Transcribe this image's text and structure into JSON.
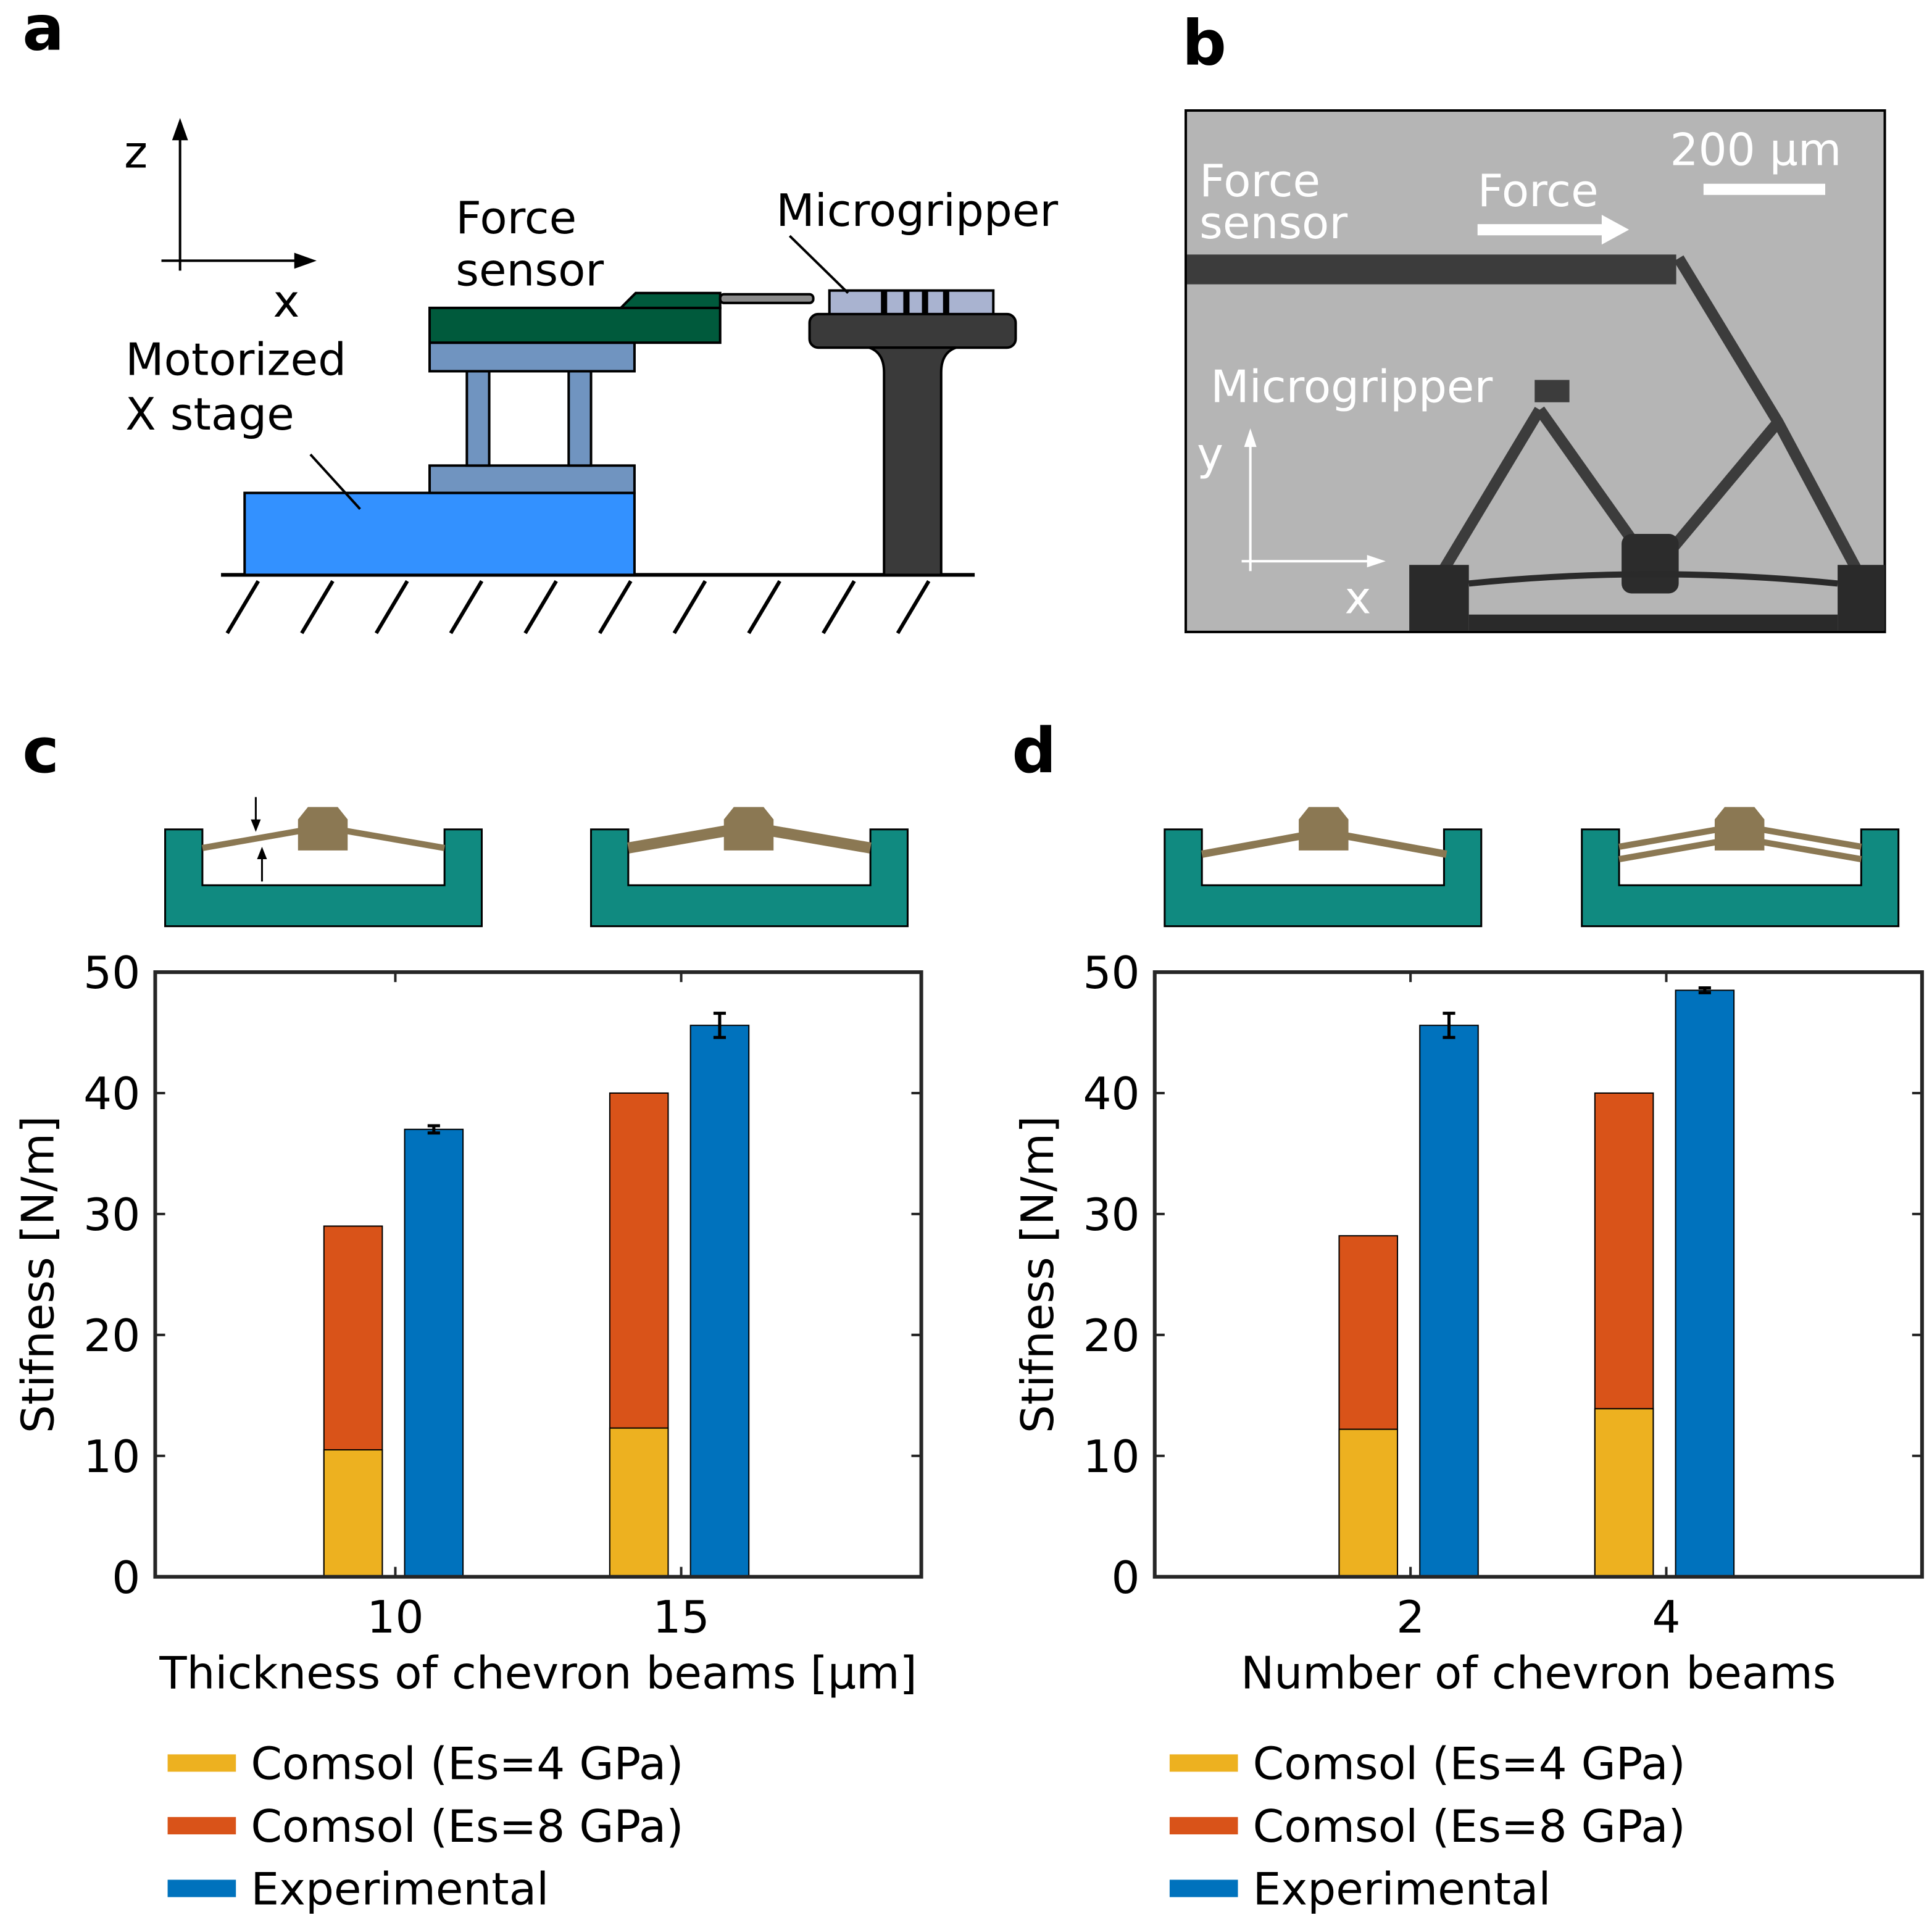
{
  "panel_labels": [
    "a",
    "b",
    "c",
    "d"
  ],
  "schematic": {
    "axis_z": "z",
    "axis_x": "x",
    "force_sensor": [
      "Force",
      "sensor"
    ],
    "microgripper": "Microgripper",
    "stage": [
      "Motorized",
      "X stage"
    ]
  },
  "micrograph": {
    "force_sensor": [
      "Force",
      "sensor"
    ],
    "force": "Force",
    "scale_bar": "200 µm",
    "microgripper": "Microgripper",
    "axis_y": "y",
    "axis_x": "x"
  },
  "chart_data": [
    {
      "type": "bar",
      "x": [
        10,
        15
      ],
      "xlim": [
        5.8,
        19.2
      ],
      "xticks": [
        10,
        15
      ],
      "xlabel": "Thickness of chevron beams [µm]",
      "ylabel": "Stifness [N/m]",
      "ylim": [
        0,
        50
      ],
      "yticks": [
        0,
        10,
        20,
        30,
        40,
        50
      ],
      "series": [
        {
          "name": "Comsol (Es=4 GPa)",
          "color": "#EDB120",
          "values": [
            10.5,
            12.3
          ]
        },
        {
          "name": "Comsol (Es=8 GPa)",
          "color": "#D95319",
          "values": [
            29,
            40
          ]
        },
        {
          "name": "Experimental",
          "color": "#0072BD",
          "values": [
            37,
            45.6
          ],
          "errors": [
            0.3,
            1.0
          ]
        }
      ]
    },
    {
      "type": "bar",
      "x": [
        2,
        4
      ],
      "xlim": [
        0,
        6
      ],
      "xticks": [
        2,
        4
      ],
      "xlabel": "Number of chevron beams",
      "ylabel": "Stifness [N/m]",
      "ylim": [
        0,
        50
      ],
      "yticks": [
        0,
        10,
        20,
        30,
        40,
        50
      ],
      "series": [
        {
          "name": "Comsol (Es=4 GPa)",
          "color": "#EDB120",
          "values": [
            12.2,
            13.9
          ]
        },
        {
          "name": "Comsol (Es=8 GPa)",
          "color": "#D95319",
          "values": [
            28.2,
            40
          ]
        },
        {
          "name": "Experimental",
          "color": "#0072BD",
          "values": [
            45.6,
            48.5
          ],
          "errors": [
            1.0,
            0.2
          ]
        }
      ]
    }
  ]
}
